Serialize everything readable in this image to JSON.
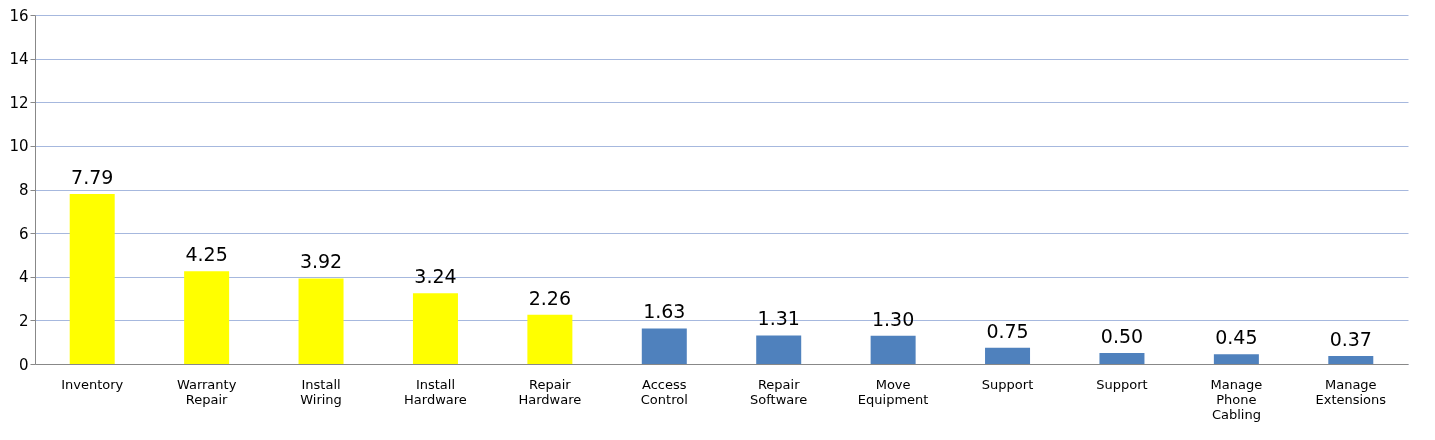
{
  "chart_data": {
    "type": "bar",
    "categories": [
      "Inventory",
      "Warranty Repair",
      "Install Wiring",
      "Install Hardware",
      "Repair Hardware",
      "Access Control",
      "Repair Software",
      "Move Equipment",
      "Support",
      "Support",
      "Manage Phone Cabling",
      "Manage Extensions"
    ],
    "values": [
      7.79,
      4.25,
      3.92,
      3.24,
      2.26,
      1.63,
      1.31,
      1.3,
      0.75,
      0.5,
      0.45,
      0.37
    ],
    "value_labels": [
      "7.79",
      "4.25",
      "3.92",
      "3.24",
      "2.26",
      "1.63",
      "1.31",
      "1.30",
      "0.75",
      "0.50",
      "0.45",
      "0.37"
    ],
    "colors": [
      "#ffff00",
      "#ffff00",
      "#ffff00",
      "#ffff00",
      "#ffff00",
      "#4f81bd",
      "#4f81bd",
      "#4f81bd",
      "#4f81bd",
      "#4f81bd",
      "#4f81bd",
      "#4f81bd"
    ],
    "ylim": [
      0,
      16
    ],
    "yticks": [
      0,
      2,
      4,
      6,
      8,
      10,
      12,
      14,
      16
    ],
    "grid": "y"
  }
}
